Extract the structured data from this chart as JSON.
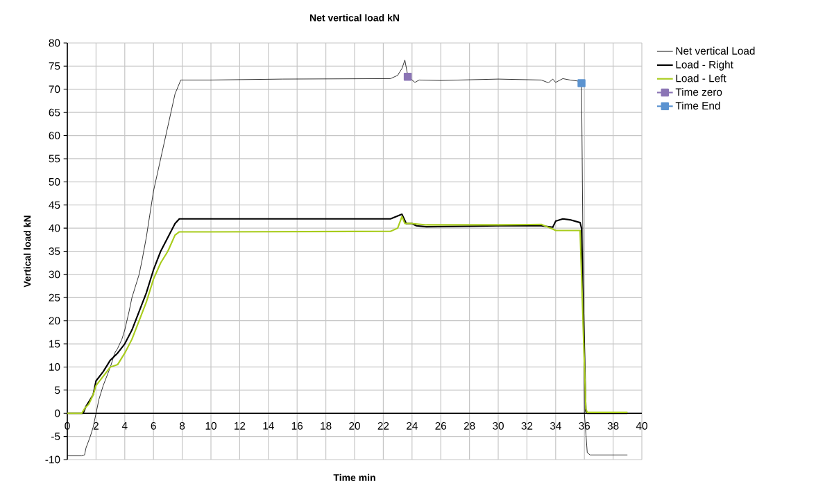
{
  "chart_data": {
    "type": "line",
    "title": "Net vertical load kN",
    "xlabel": "Time min",
    "ylabel": "Vertical load kN",
    "xlim": [
      0,
      40
    ],
    "ylim": [
      -10,
      80
    ],
    "xticks": [
      0,
      2,
      4,
      6,
      8,
      10,
      12,
      14,
      16,
      18,
      20,
      22,
      24,
      26,
      28,
      30,
      32,
      34,
      36,
      38,
      40
    ],
    "yticks": [
      -10,
      -5,
      0,
      5,
      10,
      15,
      20,
      25,
      30,
      35,
      40,
      45,
      50,
      55,
      60,
      65,
      70,
      75,
      80
    ],
    "grid": true,
    "legend": "right",
    "marker": "none",
    "series": [
      {
        "name": "Net vertical Load",
        "color": "#000000",
        "x": [
          0,
          1,
          1.2,
          1.3,
          1.6,
          1.8,
          2,
          2.2,
          2.5,
          3,
          3.3,
          3.5,
          3.8,
          4,
          4.3,
          4.5,
          5,
          5.2,
          5.5,
          6,
          6.5,
          7,
          7.5,
          7.9,
          8.5,
          10,
          15,
          22.5,
          23,
          23.3,
          23.5,
          23.7,
          24,
          24.2,
          24.5,
          26,
          30,
          33,
          33.5,
          33.8,
          34,
          34.5,
          35,
          35.5,
          35.8,
          36,
          36.2,
          36.4,
          39
        ],
        "values": [
          -9.2,
          -9.2,
          -9,
          -7.5,
          -5,
          -3,
          0,
          3,
          6,
          10,
          13,
          14,
          16,
          18,
          22,
          25,
          30,
          33,
          38,
          48,
          55,
          62,
          69,
          72,
          72,
          72,
          72.2,
          72.3,
          73,
          74.5,
          76.3,
          73,
          72,
          71.5,
          72,
          71.9,
          72.2,
          72,
          71.4,
          72.2,
          71.5,
          72.3,
          72,
          71.8,
          71.5,
          0,
          -8.5,
          -9,
          -9
        ]
      },
      {
        "name": "Load - Right",
        "color": "#000000",
        "x": [
          0,
          1.1,
          1.3,
          1.8,
          2,
          2.5,
          3,
          3.5,
          4,
          4.5,
          5,
          5.5,
          6,
          6.5,
          7,
          7.5,
          7.8,
          10,
          22.5,
          23.3,
          23.6,
          24,
          24.3,
          25,
          30,
          33,
          33.8,
          34,
          34.5,
          35,
          35.7,
          35.8,
          36.1,
          36.2,
          39
        ],
        "values": [
          0,
          0,
          1.5,
          4,
          7,
          9,
          11.5,
          13,
          15,
          18,
          22,
          26,
          31,
          35,
          38,
          41,
          42,
          42,
          42,
          43,
          41,
          41,
          40.5,
          40.3,
          40.5,
          40.5,
          40.2,
          41.5,
          42,
          41.8,
          41.2,
          40,
          0.5,
          0,
          0
        ]
      },
      {
        "name": "Load - Left",
        "color": "#a8cc1c",
        "x": [
          0,
          1,
          1.2,
          1.5,
          1.8,
          2,
          2.5,
          3,
          3.5,
          4,
          4.5,
          5,
          5.5,
          6,
          6.5,
          7,
          7.5,
          7.8,
          10,
          22.5,
          23,
          23.3,
          23.5,
          24,
          25,
          30,
          33,
          33.8,
          34,
          35,
          35.7,
          36.1,
          36.2,
          39
        ],
        "values": [
          0,
          0,
          1,
          2,
          4,
          6,
          8,
          10,
          10.5,
          13,
          16,
          20,
          24,
          29,
          32.5,
          35,
          38.5,
          39.2,
          39.2,
          39.3,
          40,
          42.5,
          41,
          41,
          40.7,
          40.7,
          40.8,
          39.8,
          39.5,
          39.5,
          39.5,
          1,
          0.2,
          0.2
        ]
      },
      {
        "name": "Time zero",
        "color": "#8b75b5",
        "marker": "square",
        "x": [
          23.7
        ],
        "values": [
          72.7
        ]
      },
      {
        "name": "Time End",
        "color": "#5b93d0",
        "marker": "square",
        "x": [
          35.8
        ],
        "values": [
          71.3
        ]
      }
    ]
  }
}
